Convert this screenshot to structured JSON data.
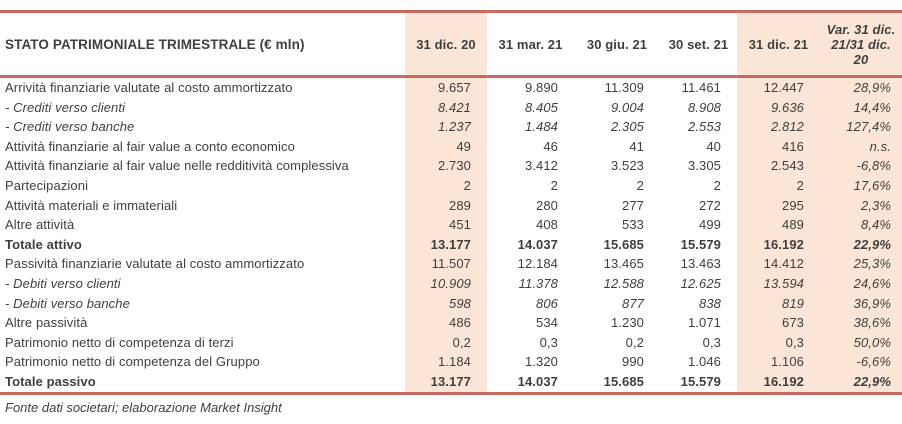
{
  "chart_data": {
    "type": "table",
    "title": "STATO PATRIMONIALE TRIMESTRALE (€ mln)",
    "columns": [
      "31 dic. 20",
      "31 mar. 21",
      "30 giu. 21",
      "30 set. 21",
      "31 dic. 21",
      "Var. 31 dic. 21/31 dic. 20"
    ],
    "shaded_column_indexes": [
      0,
      4,
      5
    ],
    "rows": [
      {
        "label": "Arrività finanziarie valutate al costo ammortizzato",
        "emphasis": "normal",
        "values": [
          "9.657",
          "9.890",
          "11.309",
          "11.461",
          "12.447",
          "28,9%"
        ]
      },
      {
        "label": "- Crediti verso clienti",
        "emphasis": "italic",
        "values": [
          "8.421",
          "8.405",
          "9.004",
          "8.908",
          "9.636",
          "14,4%"
        ]
      },
      {
        "label": "- Crediti verso banche",
        "emphasis": "italic",
        "values": [
          "1.237",
          "1.484",
          "2.305",
          "2.553",
          "2.812",
          "127,4%"
        ]
      },
      {
        "label": "Attività finanziarie al fair value a conto economico",
        "emphasis": "normal",
        "values": [
          "49",
          "46",
          "41",
          "40",
          "416",
          "n.s."
        ]
      },
      {
        "label": "Attività finanziarie al fair value nelle redditività complessiva",
        "emphasis": "normal",
        "values": [
          "2.730",
          "3.412",
          "3.523",
          "3.305",
          "2.543",
          "-6,8%"
        ]
      },
      {
        "label": "Partecipazioni",
        "emphasis": "normal",
        "values": [
          "2",
          "2",
          "2",
          "2",
          "2",
          "17,6%"
        ]
      },
      {
        "label": "Attività materiali e immateriali",
        "emphasis": "normal",
        "values": [
          "289",
          "280",
          "277",
          "272",
          "295",
          "2,3%"
        ]
      },
      {
        "label": "Altre attività",
        "emphasis": "normal",
        "values": [
          "451",
          "408",
          "533",
          "499",
          "489",
          "8,4%"
        ]
      },
      {
        "label": "Totale attivo",
        "emphasis": "bold",
        "values": [
          "13.177",
          "14.037",
          "15.685",
          "15.579",
          "16.192",
          "22,9%"
        ]
      },
      {
        "label": "Passività finanziarie valutate al costo ammortizzato",
        "emphasis": "normal",
        "values": [
          "11.507",
          "12.184",
          "13.465",
          "13.463",
          "14.412",
          "25,3%"
        ]
      },
      {
        "label": "- Debiti verso clienti",
        "emphasis": "italic",
        "values": [
          "10.909",
          "11.378",
          "12.588",
          "12.625",
          "13.594",
          "24,6%"
        ]
      },
      {
        "label": "- Debiti verso banche",
        "emphasis": "italic",
        "values": [
          "598",
          "806",
          "877",
          "838",
          "819",
          "36,9%"
        ]
      },
      {
        "label": "Altre passività",
        "emphasis": "normal",
        "values": [
          "486",
          "534",
          "1.230",
          "1.071",
          "673",
          "38,6%"
        ]
      },
      {
        "label": "Patrimonio netto di competenza di terzi",
        "emphasis": "normal",
        "values": [
          "0,2",
          "0,3",
          "0,2",
          "0,3",
          "0,3",
          "50,0%"
        ]
      },
      {
        "label": "Patrimonio netto di competenza del Gruppo",
        "emphasis": "normal",
        "values": [
          "1.184",
          "1.320",
          "990",
          "1.046",
          "1.106",
          "-6,6%"
        ]
      },
      {
        "label": "Totale passivo",
        "emphasis": "bold",
        "values": [
          "13.177",
          "14.037",
          "15.685",
          "15.579",
          "16.192",
          "22,9%"
        ]
      }
    ],
    "source_note": "Fonte dati societari; elaborazione Market Insight",
    "colors": {
      "accent_border": "#c86a5f",
      "shaded_background": "#fbe5d6",
      "text": "#3f3f3f"
    },
    "layout": {
      "legend_position": "none",
      "grid": "off"
    }
  }
}
